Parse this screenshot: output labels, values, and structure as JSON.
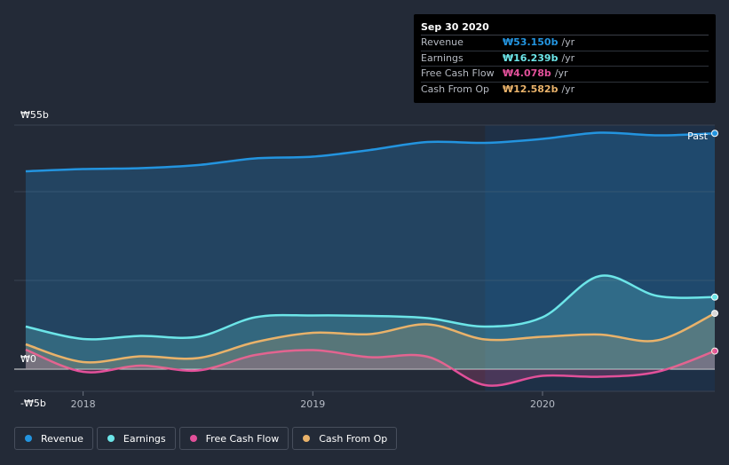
{
  "tooltip": {
    "date": "Sep 30 2020",
    "rows": [
      {
        "name": "Revenue",
        "value": "₩53.150b",
        "unit": "/yr",
        "color": "#2394df"
      },
      {
        "name": "Earnings",
        "value": "₩16.239b",
        "unit": "/yr",
        "color": "#6ce5e8"
      },
      {
        "name": "Free Cash Flow",
        "value": "₩4.078b",
        "unit": "/yr",
        "color": "#e2509a"
      },
      {
        "name": "Cash From Op",
        "value": "₩12.582b",
        "unit": "/yr",
        "color": "#e9b26a"
      }
    ]
  },
  "chart_data": {
    "type": "area",
    "past_label": "Past",
    "y_tick_labels": [
      "₩55b",
      "₩0",
      "-₩5b"
    ],
    "ylim": [
      -5,
      55
    ],
    "xlim": [
      2017.7,
      2020.75
    ],
    "x_ticks": [
      2018,
      2019,
      2020
    ],
    "x_tick_labels": [
      "2018",
      "2019",
      "2020"
    ],
    "highlight_start": 2019.75,
    "series": [
      {
        "name": "Revenue",
        "color": "#2394df",
        "x": [
          2017.75,
          2018.0,
          2018.25,
          2018.5,
          2018.75,
          2019.0,
          2019.25,
          2019.5,
          2019.75,
          2020.0,
          2020.25,
          2020.5,
          2020.75
        ],
        "values": [
          44.6,
          45.1,
          45.3,
          46.0,
          47.5,
          47.9,
          49.4,
          51.2,
          51.0,
          51.9,
          53.3,
          52.7,
          53.15
        ]
      },
      {
        "name": "Earnings",
        "color": "#6ce5e8",
        "x": [
          2017.75,
          2018.0,
          2018.25,
          2018.5,
          2018.75,
          2019.0,
          2019.25,
          2019.5,
          2019.75,
          2020.0,
          2020.25,
          2020.5,
          2020.75
        ],
        "values": [
          9.6,
          6.8,
          7.5,
          7.3,
          11.7,
          12.1,
          12.0,
          11.5,
          9.6,
          11.7,
          21.0,
          16.5,
          16.24
        ]
      },
      {
        "name": "Free Cash Flow",
        "color": "#e2509a",
        "x": [
          2017.75,
          2018.0,
          2018.25,
          2018.5,
          2018.75,
          2019.0,
          2019.25,
          2019.5,
          2019.75,
          2020.0,
          2020.25,
          2020.5,
          2020.75
        ],
        "values": [
          4.4,
          -0.6,
          0.8,
          -0.3,
          3.2,
          4.3,
          2.7,
          2.8,
          -3.6,
          -1.5,
          -1.7,
          -0.6,
          4.08
        ]
      },
      {
        "name": "Cash From Op",
        "color": "#e9b26a",
        "x": [
          2017.75,
          2018.0,
          2018.25,
          2018.5,
          2018.75,
          2019.0,
          2019.25,
          2019.5,
          2019.75,
          2020.0,
          2020.25,
          2020.5,
          2020.75
        ],
        "values": [
          5.6,
          1.6,
          2.9,
          2.5,
          6.1,
          8.2,
          7.9,
          10.1,
          6.7,
          7.3,
          7.8,
          6.5,
          12.58
        ]
      }
    ]
  },
  "legend": {
    "items": [
      {
        "label": "Revenue",
        "color": "#2394df"
      },
      {
        "label": "Earnings",
        "color": "#6ce5e8"
      },
      {
        "label": "Free Cash Flow",
        "color": "#e2509a"
      },
      {
        "label": "Cash From Op",
        "color": "#e9b26a"
      }
    ]
  }
}
